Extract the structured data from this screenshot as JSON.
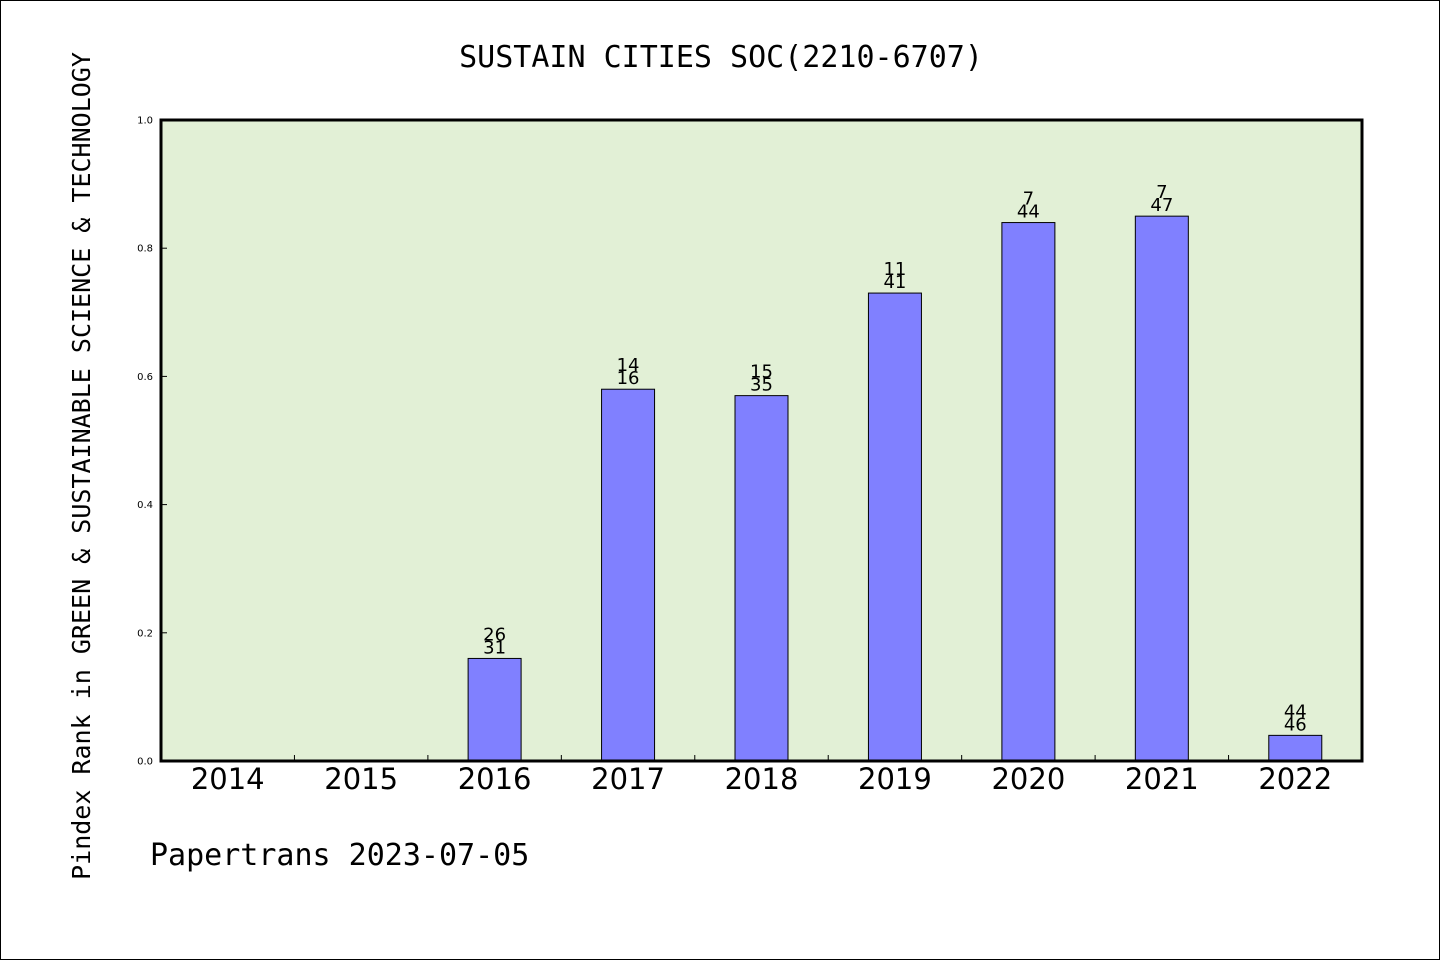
{
  "chart_data": {
    "type": "bar",
    "title": "SUSTAIN CITIES SOC(2210-6707)",
    "ylabel": "Pindex Rank in GREEN & SUSTAINABLE SCIENCE & TECHNOLOGY",
    "xlabel": "",
    "footer": "Papertrans 2023-07-05",
    "categories": [
      "2014",
      "2015",
      "2016",
      "2017",
      "2018",
      "2019",
      "2020",
      "2021",
      "2022"
    ],
    "values": [
      0,
      0,
      0.16,
      0.58,
      0.57,
      0.73,
      0.84,
      0.85,
      0.04
    ],
    "labels_top": [
      "",
      "",
      "26",
      "14",
      "15",
      "11",
      "7",
      "7",
      "44"
    ],
    "labels_bottom": [
      "",
      "",
      "31",
      "16",
      "35",
      "41",
      "44",
      "47",
      "46"
    ],
    "ylim": [
      0,
      1.0
    ],
    "yticks": [
      "0.0",
      "0.2",
      "0.4",
      "0.6",
      "0.8",
      "1.0"
    ],
    "ytick_values": [
      0,
      0.2,
      0.4,
      0.6,
      0.8,
      1.0
    ],
    "grid": false,
    "colors": {
      "bar": "#8080ff",
      "plot_background": "#e2f0d6",
      "axis": "#000000"
    }
  }
}
